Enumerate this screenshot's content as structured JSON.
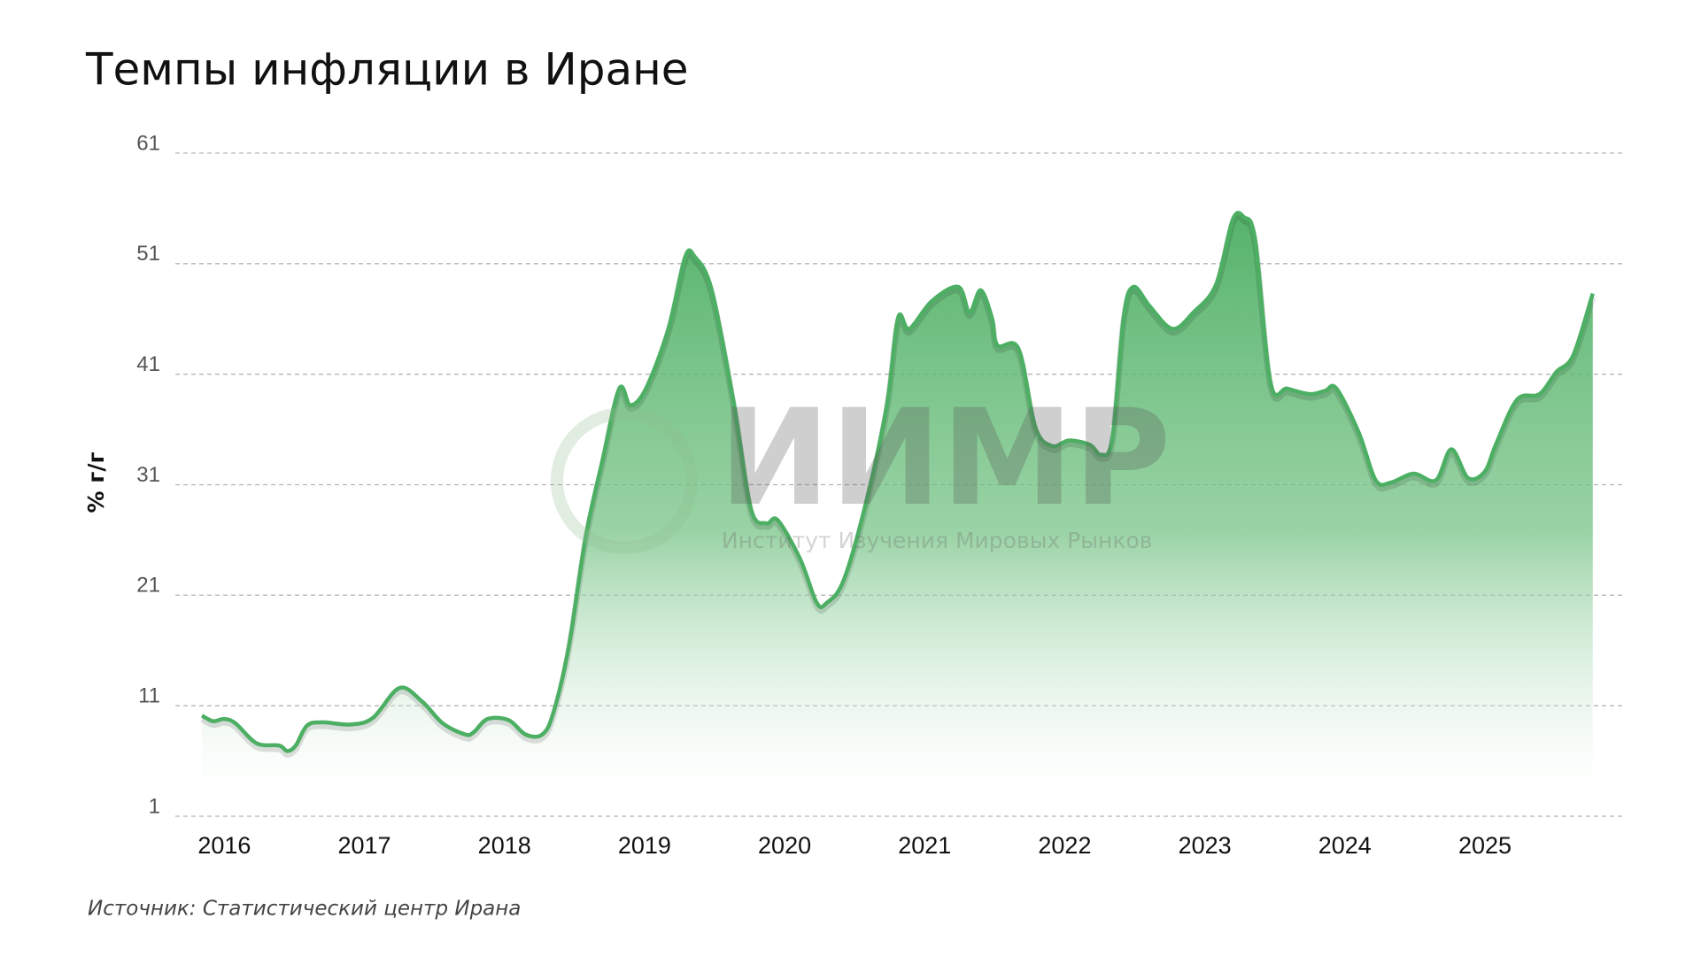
{
  "chart_data": {
    "type": "area",
    "title": "Темпы инфляции в Иране",
    "y_label": "% г/г",
    "source": "Источник: Статистический центр Ирана",
    "watermark": {
      "title": "ИИМР",
      "subtitle": "Институт Изучения Мировых Рынков"
    },
    "color": "#4caf63",
    "grid": true,
    "xlim": [
      2015.65,
      2025.98
    ],
    "xticks": [
      2016,
      2017,
      2018,
      2019,
      2020,
      2021,
      2022,
      2023,
      2024,
      2025
    ],
    "ylim": [
      1,
      61
    ],
    "yticks": [
      1,
      11,
      21,
      31,
      41,
      51,
      61
    ],
    "x": [
      2015.84,
      2015.92,
      2016.0,
      2016.08,
      2016.23,
      2016.39,
      2016.45,
      2016.51,
      2016.59,
      2016.7,
      2016.9,
      2017.06,
      2017.25,
      2017.41,
      2017.56,
      2017.72,
      2017.78,
      2017.88,
      2018.03,
      2018.15,
      2018.27,
      2018.35,
      2018.46,
      2018.58,
      2018.7,
      2018.82,
      2018.9,
      2019.01,
      2019.17,
      2019.29,
      2019.36,
      2019.48,
      2019.64,
      2019.76,
      2019.87,
      2019.95,
      2020.11,
      2020.23,
      2020.3,
      2020.42,
      2020.58,
      2020.73,
      2020.81,
      2020.89,
      2021.05,
      2021.24,
      2021.32,
      2021.4,
      2021.48,
      2021.52,
      2021.67,
      2021.79,
      2021.91,
      2022.03,
      2022.18,
      2022.26,
      2022.34,
      2022.42,
      2022.49,
      2022.61,
      2022.77,
      2022.92,
      2023.08,
      2023.2,
      2023.28,
      2023.36,
      2023.47,
      2023.59,
      2023.75,
      2023.86,
      2023.94,
      2024.1,
      2024.22,
      2024.33,
      2024.49,
      2024.65,
      2024.76,
      2024.88,
      2025.0,
      2025.08,
      2025.23,
      2025.39,
      2025.51,
      2025.63,
      2025.77
    ],
    "values": [
      10.1,
      9.6,
      9.8,
      9.4,
      7.6,
      7.4,
      6.9,
      7.4,
      9.2,
      9.5,
      9.3,
      9.9,
      12.6,
      11.4,
      9.4,
      8.4,
      8.6,
      9.8,
      9.7,
      8.4,
      8.4,
      10.4,
      16.4,
      26.3,
      33.2,
      39.7,
      38.2,
      39.7,
      45.1,
      51.6,
      51.6,
      48.6,
      38.2,
      28.8,
      27.5,
      27.8,
      24.3,
      20.3,
      20.3,
      22.3,
      29.3,
      38.2,
      46.1,
      45.1,
      47.6,
      48.9,
      46.6,
      48.6,
      46.1,
      43.6,
      43.3,
      36.2,
      34.5,
      35.0,
      34.6,
      33.7,
      35.2,
      46.1,
      48.9,
      47.1,
      45.1,
      46.6,
      49.1,
      55.0,
      55.2,
      53.1,
      40.2,
      39.7,
      39.2,
      39.5,
      39.7,
      35.7,
      31.4,
      31.2,
      32.0,
      31.4,
      34.2,
      31.6,
      32.2,
      34.7,
      38.7,
      39.2,
      41.2,
      42.7,
      48.3
    ]
  }
}
